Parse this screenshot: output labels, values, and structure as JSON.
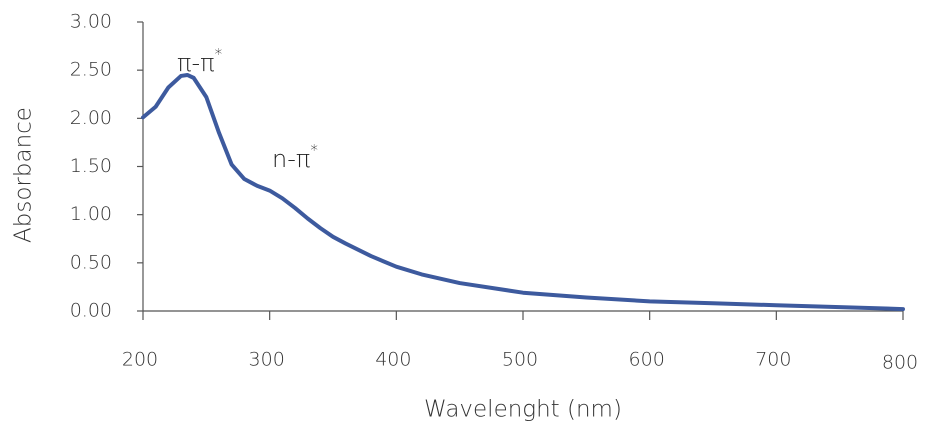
{
  "chart_data": {
    "type": "line",
    "x_label": "Wavelenght (nm)",
    "y_label": "Absorbance",
    "x": [
      200,
      210,
      220,
      230,
      235,
      240,
      250,
      260,
      270,
      280,
      290,
      300,
      310,
      320,
      330,
      340,
      350,
      360,
      380,
      400,
      420,
      450,
      500,
      550,
      600,
      650,
      700,
      750,
      800
    ],
    "values": [
      2.01,
      2.12,
      2.32,
      2.44,
      2.45,
      2.42,
      2.22,
      1.85,
      1.52,
      1.37,
      1.3,
      1.25,
      1.17,
      1.07,
      0.96,
      0.86,
      0.77,
      0.7,
      0.57,
      0.46,
      0.38,
      0.29,
      0.19,
      0.14,
      0.1,
      0.08,
      0.06,
      0.04,
      0.02
    ],
    "color": "#3d5a9e",
    "xlim": [
      200,
      800
    ],
    "xticks": [
      200,
      300,
      400,
      500,
      600,
      700,
      800
    ],
    "ylim": [
      0,
      3
    ],
    "yticks": [
      {
        "value": 0,
        "label": "0.00"
      },
      {
        "value": 0.5,
        "label": "0.50"
      },
      {
        "value": 1,
        "label": "1.00"
      },
      {
        "value": 1.5,
        "label": "1.50"
      },
      {
        "value": 2,
        "label": "2.00"
      },
      {
        "value": 2.5,
        "label": "2.50"
      },
      {
        "value": 3,
        "label": "3.00"
      }
    ],
    "grid": false,
    "annotations": [
      {
        "main": "π-π",
        "sup": "*"
      },
      {
        "main": "n-π",
        "sup": "*"
      }
    ]
  }
}
